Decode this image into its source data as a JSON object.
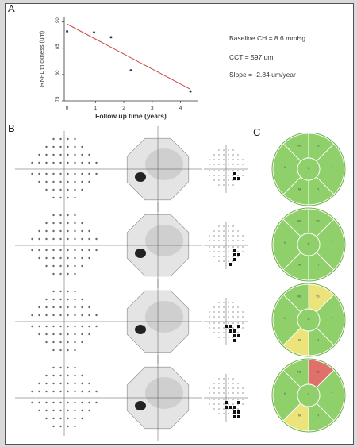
{
  "panel_letters": [
    "A",
    "B",
    "C"
  ],
  "chart_data": {
    "type": "scatter",
    "ylabel": "RNFL thickness (um)",
    "xlabel": "Follow up time (years)",
    "x_ticks": [
      "0",
      "1",
      "2",
      "3",
      "4"
    ],
    "y_ticks": [
      "75",
      "80",
      "85",
      "90"
    ],
    "xlim": [
      -0.1,
      4.6
    ],
    "ylim": [
      75,
      91
    ],
    "points": [
      {
        "x": 0.0,
        "y": 88.2
      },
      {
        "x": 0.95,
        "y": 88.0
      },
      {
        "x": 1.55,
        "y": 87.1
      },
      {
        "x": 2.25,
        "y": 80.8
      },
      {
        "x": 4.35,
        "y": 76.8
      }
    ],
    "trend_line": {
      "x": [
        0.0,
        4.35
      ],
      "y": [
        89.6,
        77.2
      ],
      "color": "#c94b4b"
    },
    "point_color": "#2b3a66"
  },
  "stats": {
    "baseline_ch": "Baseline CH = 8.6 mmHg",
    "cct": "CCT = 597 um",
    "slope": "Slope = -2.84 um/year"
  },
  "colors": {
    "green": "#8fd06a",
    "yellow": "#ece37a",
    "red": "#e0706a",
    "sector_border": "#ffffff",
    "outer_ring": "#6fb04c"
  },
  "sector_rows": [
    {
      "states": [
        "green",
        "green",
        "green",
        "green",
        "green",
        "green",
        "green"
      ]
    },
    {
      "states": [
        "green",
        "green",
        "green",
        "green",
        "green",
        "green",
        "green"
      ]
    },
    {
      "states": [
        "green",
        "yellow",
        "green",
        "green",
        "yellow",
        "green",
        "green"
      ]
    },
    {
      "states": [
        "green",
        "red",
        "green",
        "green",
        "yellow",
        "green",
        "green"
      ]
    }
  ],
  "sector_labels": [
    "NS",
    "TS",
    "N",
    "T",
    "NI",
    "TI",
    "G"
  ]
}
